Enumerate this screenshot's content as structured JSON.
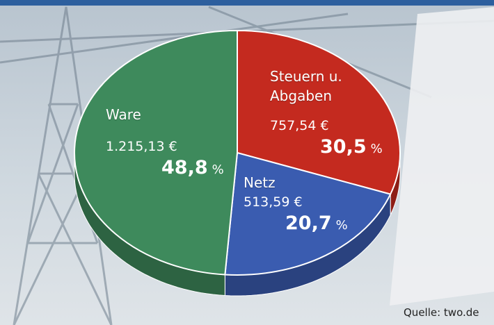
{
  "chart_data": {
    "type": "pie",
    "categories": [
      "Steuern u. Abgaben",
      "Netz",
      "Ware"
    ],
    "values": [
      30.5,
      20.7,
      48.8
    ],
    "value_labels": [
      "30,5",
      "20,7",
      "48,8"
    ],
    "unit": "%",
    "amount_labels": [
      "757,54 €",
      "513,59 €",
      "1.215,13 €"
    ],
    "colors": [
      "#c42a1f",
      "#3a5cb0",
      "#3e8a5c"
    ],
    "source": "Quelle: two.de"
  }
}
